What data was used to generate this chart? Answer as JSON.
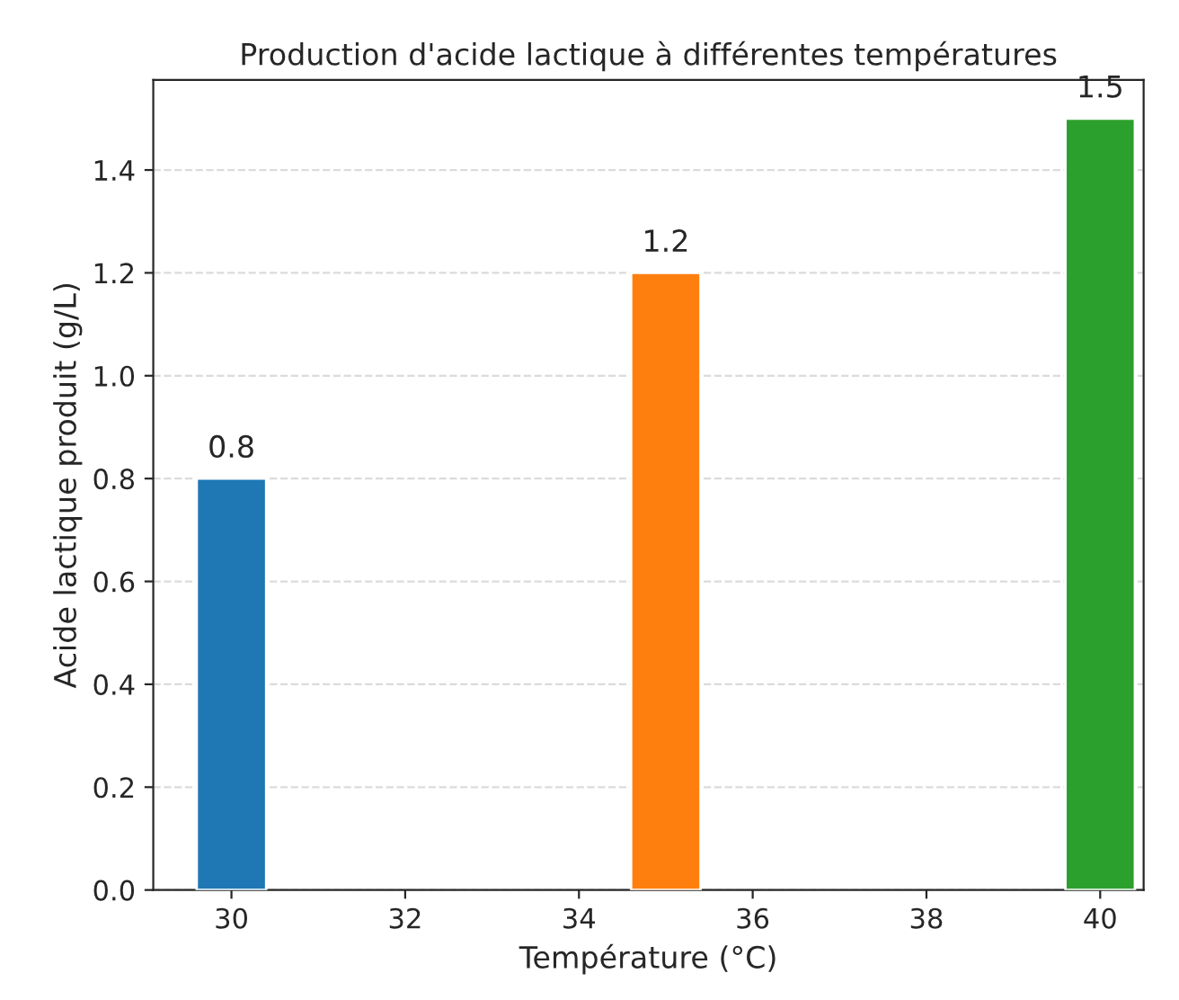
{
  "chart_data": {
    "type": "bar",
    "title": "Production d'acide lactique à différentes températures",
    "xlabel": "Température (°C)",
    "ylabel": "Acide lactique produit (g/L)",
    "x": [
      30,
      35,
      40
    ],
    "values": [
      0.8,
      1.2,
      1.5
    ],
    "colors": [
      "#1f77b4",
      "#ff7f0e",
      "#2ca02c"
    ],
    "xlim": [
      29.1,
      40.5
    ],
    "xticks": [
      30,
      32,
      34,
      36,
      38,
      40
    ],
    "ylim": [
      0,
      1.575
    ],
    "yticks": [
      {
        "value": 0,
        "label": "0.0"
      },
      0.2,
      0.4,
      0.6,
      0.8,
      {
        "value": 1,
        "label": "1.0"
      },
      1.2,
      1.4
    ],
    "grid": "y",
    "data_labels": true
  }
}
